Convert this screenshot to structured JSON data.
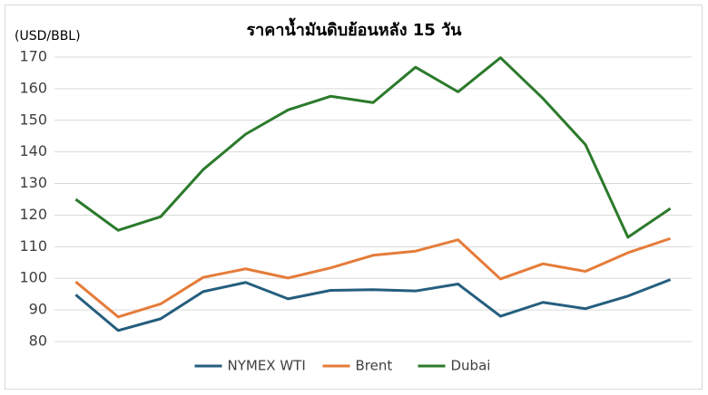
{
  "chart_data": {
    "type": "line",
    "title": "ราคาน้ำมันดิบย้อนหลัง 15 วัน",
    "y_label": "(USD/BBL)",
    "categories": [
      null,
      null,
      null,
      null,
      null,
      null,
      null,
      null,
      null,
      null,
      null,
      null,
      null,
      null,
      null
    ],
    "series": [
      {
        "name": "NYMEX WTI",
        "color": "#255e7e",
        "values": [
          94.8,
          83.5,
          87.2,
          95.8,
          98.7,
          93.5,
          96.2,
          96.4,
          96.0,
          98.2,
          88.0,
          92.4,
          90.4,
          94.4,
          99.6
        ]
      },
      {
        "name": "Brent",
        "color": "#e57c3a",
        "values": [
          98.9,
          87.8,
          91.9,
          100.3,
          103.0,
          100.1,
          103.3,
          107.3,
          108.6,
          112.2,
          99.8,
          104.6,
          102.2,
          108.1,
          112.6
        ]
      },
      {
        "name": "Dubai",
        "color": "#2b7a2b",
        "values": [
          125.0,
          115.2,
          119.5,
          134.4,
          145.6,
          153.3,
          157.6,
          155.6,
          166.8,
          159.0,
          169.8,
          156.9,
          142.3,
          113.0,
          122.1
        ]
      }
    ],
    "ylim": [
      80,
      170
    ],
    "yticks": [
      80,
      90,
      100,
      110,
      120,
      130,
      140,
      150,
      160,
      170
    ],
    "grid": true,
    "legend": "bottom"
  }
}
